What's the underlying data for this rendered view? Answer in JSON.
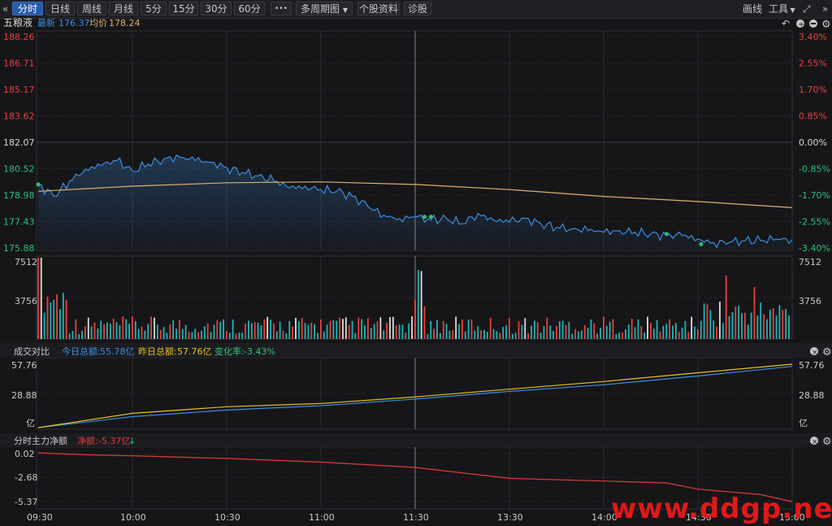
{
  "toolbar": {
    "back_icon": "double-chevron-left-icon",
    "tabs": [
      "分时",
      "日线",
      "周线",
      "月线",
      "5分",
      "15分",
      "30分",
      "60分"
    ],
    "more": "•••",
    "multi_period": "多周期图",
    "stock_info": "个股资料",
    "diagnose": "诊股",
    "draw": "画线",
    "tools": "工具",
    "expand_icon": "expand-icon",
    "forward_icon": "double-chevron-right-icon"
  },
  "price_panel": {
    "name": "五粮液",
    "latest_label": "最新",
    "latest": "176.37",
    "avg_label": "均价",
    "avg": "178.24",
    "y_left": [
      "188.26",
      "186.71",
      "185.17",
      "183.62",
      "182.07",
      "180.52",
      "178.98",
      "177.43",
      "175.88"
    ],
    "y_right": [
      "3.40%",
      "2.55%",
      "1.70%",
      "0.85%",
      "0.00%",
      "-0.85%",
      "-1.70%",
      "-2.55%",
      "-3.40%"
    ],
    "icons": [
      "undo-icon",
      "zoom-in-icon",
      "zoom-out-icon",
      "settings-icon"
    ]
  },
  "volume_panel": {
    "y": [
      "7512",
      "3756"
    ]
  },
  "turnover_panel": {
    "title": "成交对比",
    "today_label": "今日总额:",
    "today": "55.78亿",
    "yesterday_label": "昨日总额:",
    "yesterday": "57.76亿",
    "change_label": "变化率:",
    "change": "-3.43%",
    "y": [
      "57.76",
      "28.88",
      "亿"
    ]
  },
  "capital_panel": {
    "title": "分时主力净额",
    "net_label": "净额:",
    "net": "-5.37亿",
    "y": [
      "0.02",
      "-2.68",
      "-5.37"
    ]
  },
  "time_axis": [
    "09:30",
    "10:00",
    "10:30",
    "11:00",
    "11:30",
    "13:30",
    "14:00",
    "14:30",
    "15:00"
  ],
  "watermark": "www.ddgp.net",
  "colors": {
    "up": "#e8413a",
    "down": "#1fb5b5",
    "price_line": "#3b8ee0",
    "avg_line": "#e0b070",
    "yesterday_line": "#e8c020",
    "capital_line": "#e03a3a",
    "accent": "#2a5aa8"
  },
  "chart_data": [
    {
      "type": "line",
      "title": "五粮液",
      "ylim": [
        175.88,
        188.26
      ],
      "series": [
        {
          "name": "最新",
          "x": [
            0,
            5,
            10,
            15,
            20,
            25,
            30,
            35,
            40,
            45,
            50,
            55,
            60,
            65,
            70,
            75,
            80,
            85,
            90,
            95,
            100,
            105,
            110,
            115,
            120,
            125,
            130,
            135,
            140,
            145,
            150,
            155,
            160,
            165,
            170,
            175,
            180,
            185,
            190,
            195,
            200,
            205,
            210,
            215,
            220,
            225,
            230,
            235,
            240
          ],
          "values": [
            179.6,
            178.9,
            179.8,
            180.5,
            180.7,
            181.0,
            180.4,
            180.8,
            181.1,
            181.2,
            181.0,
            180.9,
            180.6,
            180.3,
            180.1,
            179.8,
            179.4,
            179.5,
            179.3,
            179.2,
            178.9,
            178.3,
            177.8,
            177.6,
            177.7,
            177.5,
            177.6,
            177.3,
            177.9,
            177.5,
            177.4,
            177.6,
            177.3,
            177.1,
            177.0,
            176.9,
            176.8,
            176.9,
            176.8,
            176.7,
            176.6,
            176.6,
            176.4,
            176.2,
            176.2,
            176.3,
            176.3,
            176.4,
            176.37
          ]
        },
        {
          "name": "均价",
          "x": [
            0,
            30,
            60,
            90,
            120,
            150,
            180,
            210,
            240
          ],
          "values": [
            179.2,
            179.5,
            179.7,
            179.75,
            179.6,
            179.3,
            178.9,
            178.6,
            178.24
          ]
        }
      ]
    },
    {
      "type": "bar",
      "title": "",
      "ylim": [
        0,
        7512
      ],
      "note_values": "volume per minute (approx.)"
    },
    {
      "type": "line",
      "title": "成交对比",
      "ylim": [
        0,
        57.76
      ],
      "series": [
        {
          "name": "今日总额",
          "x": [
            0,
            30,
            60,
            90,
            120,
            150,
            180,
            210,
            240
          ],
          "values": [
            0,
            10,
            16,
            20,
            26,
            33,
            39,
            47,
            55.78
          ]
        },
        {
          "name": "昨日总额",
          "x": [
            0,
            30,
            60,
            90,
            120,
            150,
            180,
            210,
            240
          ],
          "values": [
            0,
            13,
            19,
            22,
            28,
            35,
            42,
            50,
            57.76
          ]
        }
      ]
    },
    {
      "type": "line",
      "title": "分时主力净额",
      "ylim": [
        -5.37,
        0.02
      ],
      "series": [
        {
          "name": "净额",
          "x": [
            0,
            15,
            30,
            60,
            90,
            120,
            150,
            180,
            200,
            210,
            230,
            240
          ],
          "values": [
            0.02,
            -0.2,
            -0.3,
            -0.6,
            -1.0,
            -1.6,
            -2.8,
            -3.1,
            -3.3,
            -4.0,
            -4.6,
            -5.37
          ]
        }
      ]
    }
  ]
}
